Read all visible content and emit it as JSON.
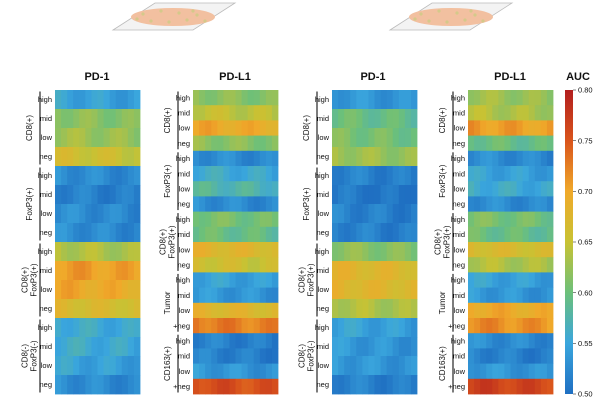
{
  "figure": {
    "column_titles": [
      "PD-1",
      "PD-L1",
      "PD-1",
      "PD-L1"
    ],
    "left_groups": [
      {
        "label_lines": [
          "CD8(+)"
        ],
        "levels": [
          "high",
          "mid",
          "low",
          "neg"
        ]
      },
      {
        "label_lines": [
          "FoxP3(+)"
        ],
        "levels": [
          "high",
          "mid",
          "low",
          "neg"
        ]
      },
      {
        "label_lines": [
          "CD8(+)",
          "FoxP3(+)"
        ],
        "levels": [
          "high",
          "mid",
          "low",
          "neg"
        ]
      },
      {
        "label_lines": [
          "CD8(-)",
          "FoxP3(-)"
        ],
        "levels": [
          "high",
          "mid",
          "low",
          "neg"
        ]
      }
    ],
    "right_groups": [
      {
        "label_lines": [
          "CD8(+)"
        ],
        "levels": [
          "high",
          "mid",
          "low",
          "neg"
        ]
      },
      {
        "label_lines": [
          "FoxP3(+)"
        ],
        "levels": [
          "high",
          "mid",
          "low",
          "neg"
        ]
      },
      {
        "label_lines": [
          "CD8(+)",
          "FoxP3(+)"
        ],
        "levels": [
          "high",
          "mid",
          "low",
          "neg"
        ]
      },
      {
        "label_lines": [
          "Tumor"
        ],
        "levels": [
          "high",
          "mid",
          "low",
          "+neg"
        ]
      },
      {
        "label_lines": [
          "CD163(+)"
        ],
        "levels": [
          "high",
          "mid",
          "low",
          "+neg"
        ]
      }
    ],
    "colorbar": {
      "title": "AUC",
      "ticks": [
        "0.80",
        "0.75",
        "0.70",
        "0.65",
        "0.60",
        "0.55",
        "0.50"
      ],
      "min": 0.5,
      "max": 0.8,
      "colors": [
        "#1f6fc2",
        "#3aa6dd",
        "#6cc07a",
        "#c8c233",
        "#f0a92a",
        "#d9541c",
        "#b21e1e"
      ]
    },
    "tissue_colors": {
      "slide": "#f3f3f3",
      "tissue": "#f2c0a0",
      "spots": "#d4c98a"
    }
  },
  "chart_data": [
    {
      "type": "heatmap",
      "title": "PD-1",
      "rows": [
        "CD8(+) high",
        "CD8(+) mid",
        "CD8(+) low",
        "CD8(+) neg",
        "FoxP3(+) high",
        "FoxP3(+) mid",
        "FoxP3(+) low",
        "FoxP3(+) neg",
        "CD8(+) FoxP3(+) high",
        "CD8(+) FoxP3(+) mid",
        "CD8(+) FoxP3(+) low",
        "CD8(+) FoxP3(+) neg",
        "CD8(-) FoxP3(-) high",
        "CD8(-) FoxP3(-) mid",
        "CD8(-) FoxP3(-) low",
        "CD8(-) FoxP3(-) neg"
      ],
      "values": [
        0.55,
        0.62,
        0.63,
        0.66,
        0.53,
        0.52,
        0.53,
        0.53,
        0.64,
        0.71,
        0.7,
        0.67,
        0.56,
        0.56,
        0.55,
        0.53
      ],
      "zlim": [
        0.5,
        0.8
      ]
    },
    {
      "type": "heatmap",
      "title": "PD-L1",
      "rows": [
        "CD8(+) high",
        "CD8(+) mid",
        "CD8(+) low",
        "CD8(+) neg",
        "FoxP3(+) high",
        "FoxP3(+) mid",
        "FoxP3(+) low",
        "FoxP3(+) neg",
        "CD8(+) FoxP3(+) high",
        "CD8(+) FoxP3(+) mid",
        "CD8(+) FoxP3(+) low",
        "CD8(+) FoxP3(+) neg",
        "Tumor high",
        "Tumor mid",
        "Tumor low",
        "Tumor +neg",
        "CD163(+) high",
        "CD163(+) mid",
        "CD163(+) low",
        "CD163(+) +neg"
      ],
      "values": [
        0.62,
        0.65,
        0.7,
        0.62,
        0.53,
        0.56,
        0.58,
        0.53,
        0.61,
        0.6,
        0.68,
        0.66,
        0.55,
        0.54,
        0.68,
        0.73,
        0.52,
        0.52,
        0.54,
        0.76
      ],
      "zlim": [
        0.5,
        0.8
      ]
    },
    {
      "type": "heatmap",
      "title": "PD-1",
      "rows": [
        "CD8(+) high",
        "CD8(+) mid",
        "CD8(+) low",
        "CD8(+) neg",
        "FoxP3(+) high",
        "FoxP3(+) mid",
        "FoxP3(+) low",
        "FoxP3(+) neg",
        "CD8(+) FoxP3(+) high",
        "CD8(+) FoxP3(+) mid",
        "CD8(+) FoxP3(+) low",
        "CD8(+) FoxP3(+) neg",
        "CD8(-) FoxP3(-) high",
        "CD8(-) FoxP3(-) mid",
        "CD8(-) FoxP3(-) low",
        "CD8(-) FoxP3(-) neg"
      ],
      "values": [
        0.54,
        0.6,
        0.61,
        0.63,
        0.52,
        0.51,
        0.52,
        0.52,
        0.62,
        0.68,
        0.68,
        0.64,
        0.55,
        0.54,
        0.54,
        0.52
      ],
      "zlim": [
        0.5,
        0.8
      ]
    },
    {
      "type": "heatmap",
      "title": "PD-L1",
      "rows": [
        "CD8(+) high",
        "CD8(+) mid",
        "CD8(+) low",
        "CD8(+) neg",
        "FoxP3(+) high",
        "FoxP3(+) mid",
        "FoxP3(+) low",
        "FoxP3(+) neg",
        "CD8(+) FoxP3(+) high",
        "CD8(+) FoxP3(+) mid",
        "CD8(+) FoxP3(+) low",
        "CD8(+) FoxP3(+) neg",
        "Tumor high",
        "Tumor mid",
        "Tumor low",
        "Tumor +neg",
        "CD163(+) high",
        "CD163(+) mid",
        "CD163(+) low",
        "CD163(+) +neg"
      ],
      "values": [
        0.63,
        0.64,
        0.71,
        0.6,
        0.53,
        0.55,
        0.56,
        0.53,
        0.61,
        0.6,
        0.67,
        0.64,
        0.55,
        0.54,
        0.7,
        0.72,
        0.53,
        0.52,
        0.54,
        0.77
      ],
      "zlim": [
        0.5,
        0.8
      ]
    }
  ]
}
